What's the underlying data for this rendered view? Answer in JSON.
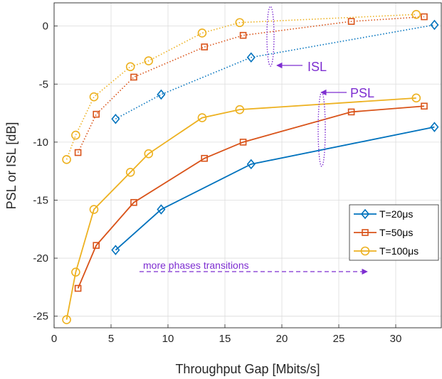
{
  "chart_data": {
    "type": "line",
    "xlabel": "Throughput Gap [Mbits/s]",
    "ylabel": "PSL or ISL [dB]",
    "xlim": [
      0,
      34
    ],
    "ylim": [
      -26,
      2
    ],
    "xticks": [
      0,
      5,
      10,
      15,
      20,
      25,
      30
    ],
    "yticks": [
      0,
      -5,
      -10,
      -15,
      -20,
      -25
    ],
    "grid": true,
    "legend_position": "lower-right",
    "series": [
      {
        "name": "T=20μs",
        "metric": "PSL",
        "marker": "diamond",
        "color": "#0072BD",
        "x": [
          5.4,
          9.4,
          17.3,
          33.4
        ],
        "y": [
          -19.3,
          -15.8,
          -11.9,
          -8.7
        ]
      },
      {
        "name": "T=50μs",
        "metric": "PSL",
        "marker": "square",
        "color": "#D95319",
        "x": [
          2.1,
          3.7,
          7.0,
          13.2,
          16.6,
          26.1,
          32.5
        ],
        "y": [
          -22.6,
          -18.9,
          -15.2,
          -11.4,
          -10.0,
          -7.4,
          -6.9
        ]
      },
      {
        "name": "T=100μs",
        "metric": "PSL",
        "marker": "circle",
        "color": "#EDB120",
        "x": [
          1.1,
          1.9,
          3.5,
          6.7,
          8.3,
          13.0,
          16.3,
          31.8
        ],
        "y": [
          -25.3,
          -21.2,
          -15.8,
          -12.6,
          -11.0,
          -7.9,
          -7.2,
          -6.2
        ]
      },
      {
        "name": "T=20μs",
        "metric": "ISL",
        "marker": "diamond",
        "color": "#0072BD",
        "x": [
          5.4,
          9.4,
          17.3,
          33.4
        ],
        "y": [
          -8.0,
          -5.9,
          -2.7,
          0.1
        ]
      },
      {
        "name": "T=50μs",
        "metric": "ISL",
        "marker": "square",
        "color": "#D95319",
        "x": [
          2.1,
          3.7,
          7.0,
          13.2,
          16.6,
          26.1,
          32.5
        ],
        "y": [
          -10.9,
          -7.6,
          -4.4,
          -1.8,
          -0.8,
          0.4,
          0.8
        ]
      },
      {
        "name": "T=100μs",
        "metric": "ISL",
        "marker": "circle",
        "color": "#EDB120",
        "x": [
          1.1,
          1.9,
          3.5,
          6.7,
          8.3,
          13.0,
          16.3,
          31.8
        ],
        "y": [
          -11.5,
          -9.4,
          -6.1,
          -3.5,
          -3.0,
          -0.6,
          0.3,
          1.0
        ]
      }
    ],
    "annotations": {
      "isl": "ISL",
      "psl": "PSL",
      "arrow": "more phases transitions"
    },
    "annotation_color": "#7E2ED1"
  }
}
